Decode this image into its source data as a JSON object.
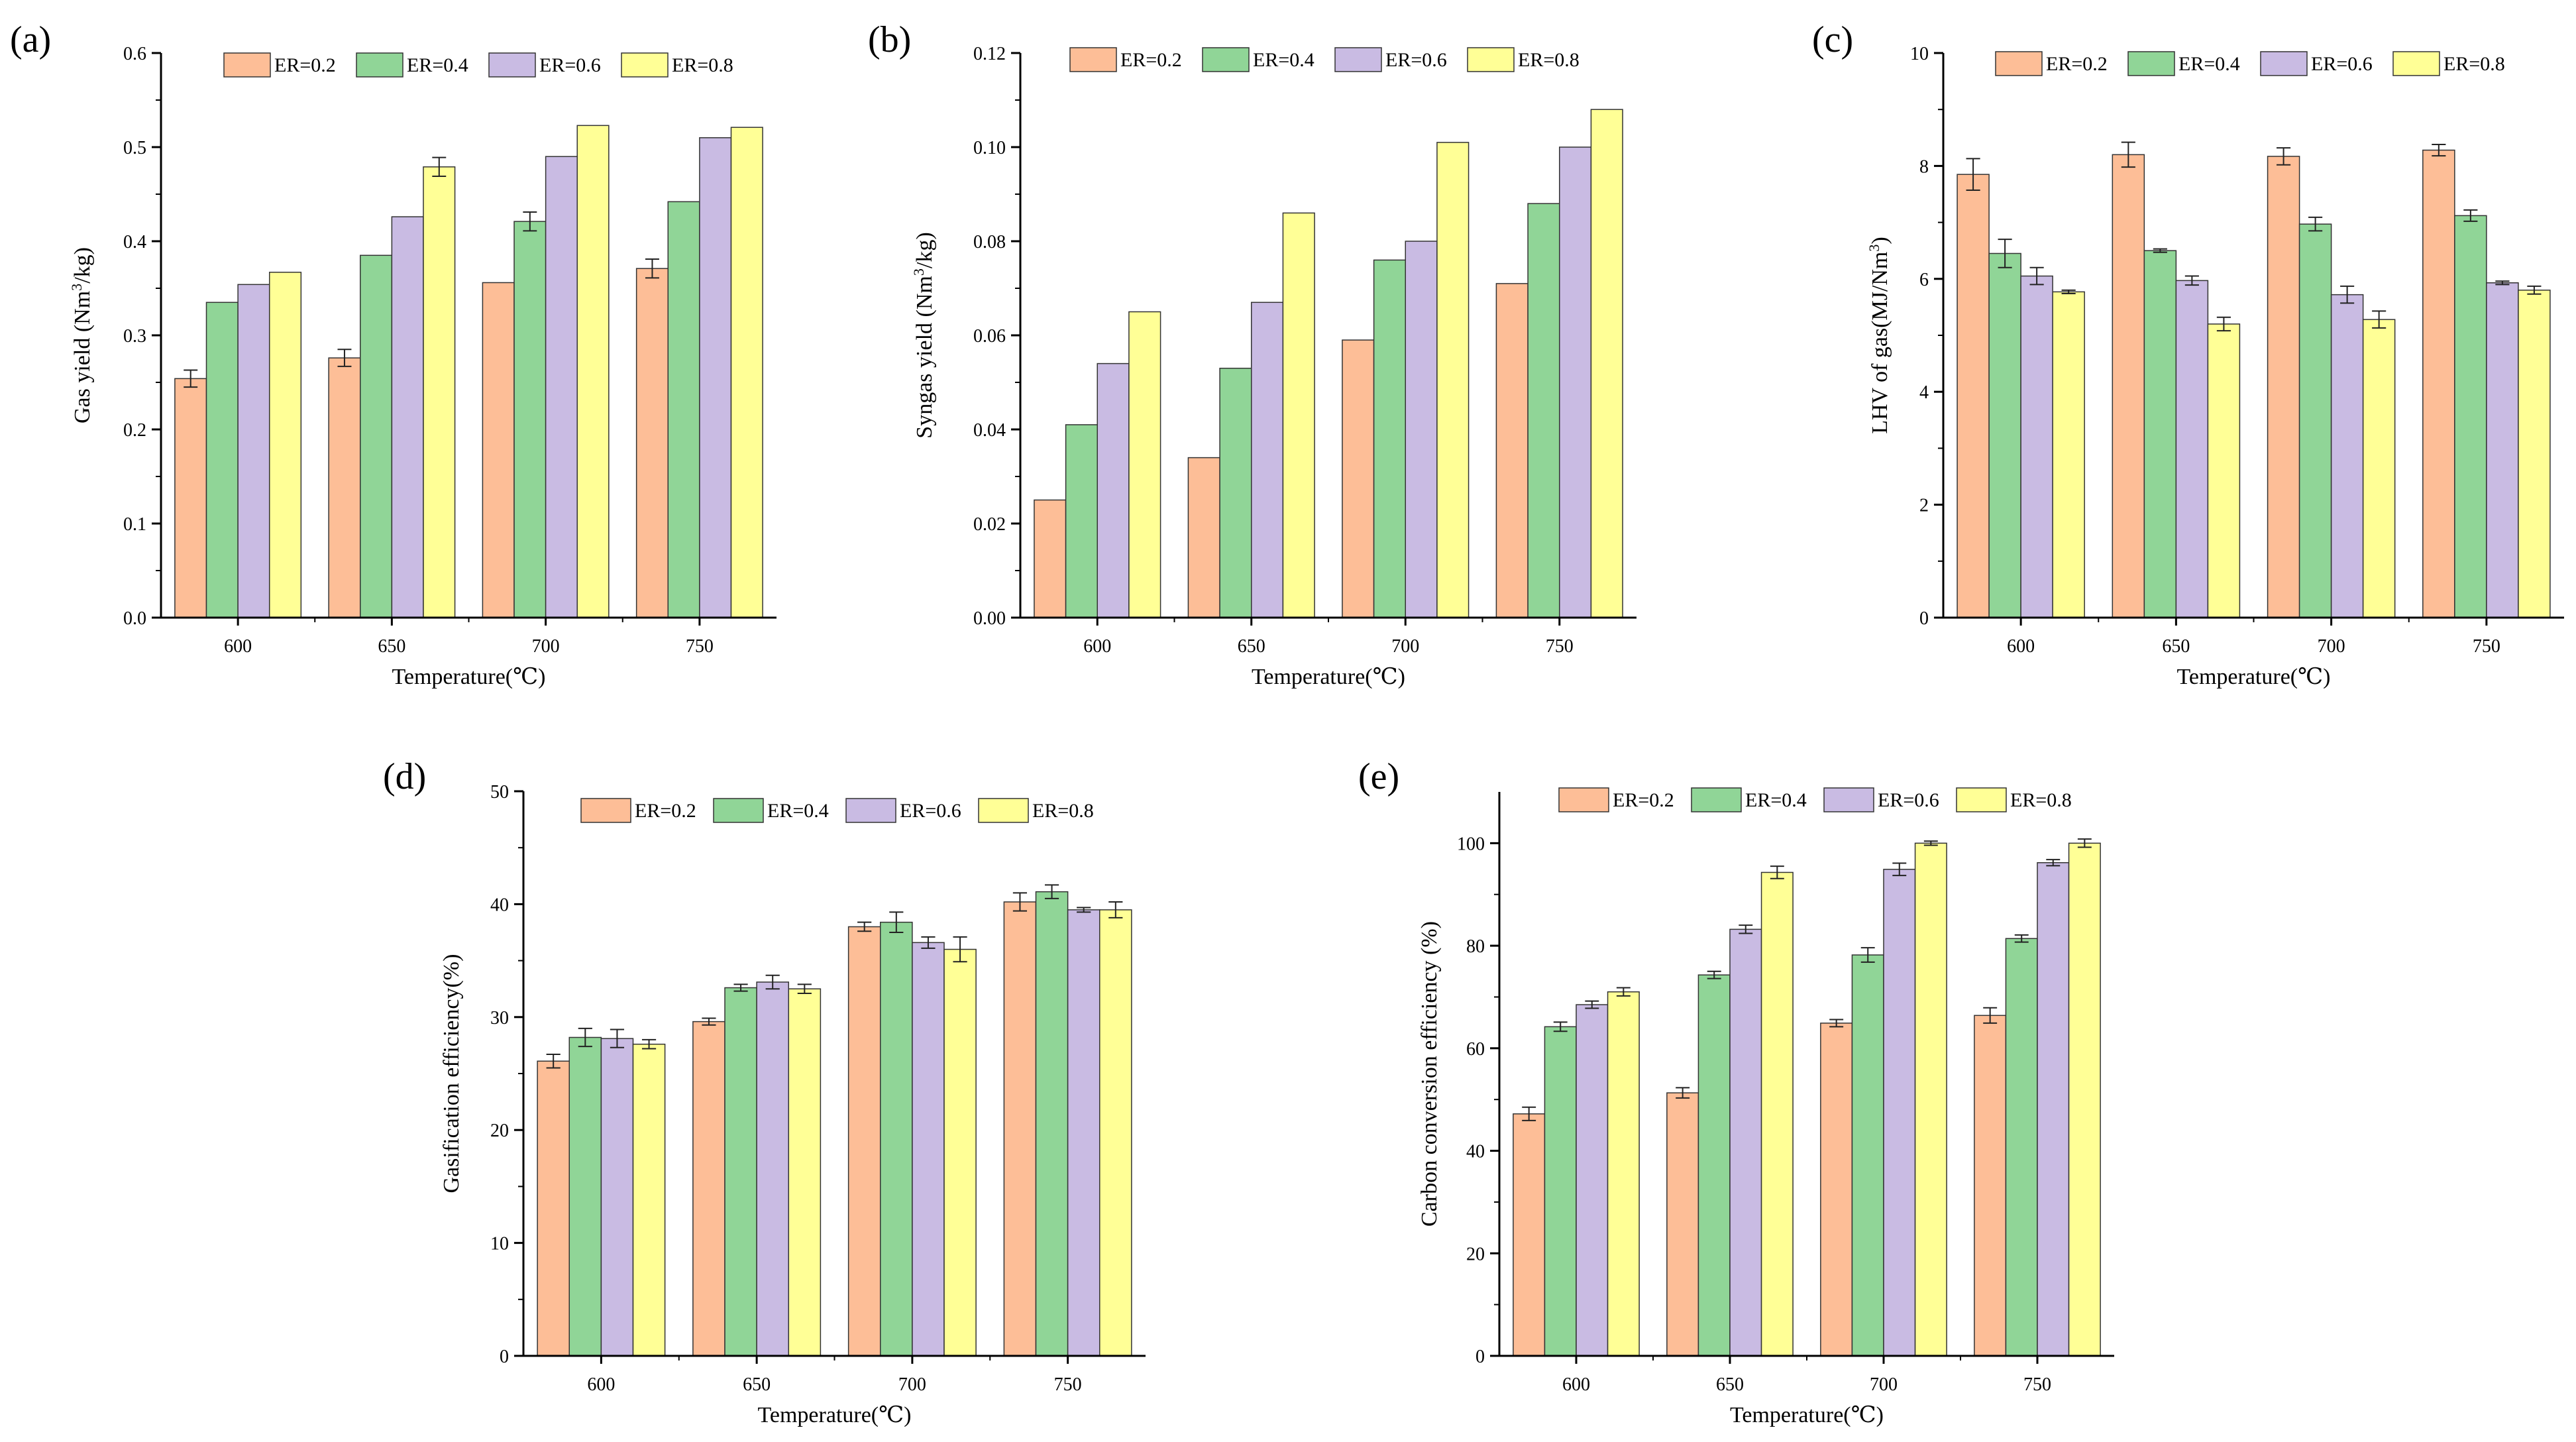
{
  "legend_colors": {
    "ER=0.2": "#FDBE97",
    "ER=0.4": "#90D597",
    "ER=0.6": "#C9BBE3",
    "ER=0.8": "#FFFF96"
  },
  "axis_color": "#000000",
  "chart_data": [
    {
      "id": "a",
      "panel_label": "(a)",
      "type": "bar",
      "title": "",
      "xlabel": "Temperature(℃)",
      "ylabel": {
        "pre": "Gas yield (Nm",
        "sup": "3",
        "post": "/kg)"
      },
      "categories": [
        "600",
        "650",
        "700",
        "750"
      ],
      "ylim": [
        0,
        0.6
      ],
      "yticks": [
        "0.0",
        "0.1",
        "0.2",
        "0.3",
        "0.4",
        "0.5",
        "0.6"
      ],
      "legend": "top-center",
      "series": [
        {
          "name": "ER=0.2",
          "values": [
            0.254,
            0.276,
            0.356,
            0.371
          ],
          "errors": [
            0.009,
            0.009,
            0.0,
            0.01
          ]
        },
        {
          "name": "ER=0.4",
          "values": [
            0.335,
            0.385,
            0.421,
            0.442
          ],
          "errors": [
            0.0,
            0.0,
            0.01,
            0.0
          ]
        },
        {
          "name": "ER=0.6",
          "values": [
            0.354,
            0.426,
            0.49,
            0.51
          ],
          "errors": [
            0.0,
            0.0,
            0.0,
            0.0
          ]
        },
        {
          "name": "ER=0.8",
          "values": [
            0.367,
            0.479,
            0.523,
            0.521
          ],
          "errors": [
            0.0,
            0.01,
            0.0,
            0.0
          ]
        }
      ]
    },
    {
      "id": "b",
      "panel_label": "(b)",
      "type": "bar",
      "title": "",
      "xlabel": "Temperature(℃)",
      "ylabel": {
        "pre": "Syngas yield (Nm",
        "sup": "3",
        "post": "/kg)"
      },
      "categories": [
        "600",
        "650",
        "700",
        "750"
      ],
      "ylim": [
        0,
        0.12
      ],
      "yticks": [
        "0.00",
        "0.02",
        "0.04",
        "0.06",
        "0.08",
        "0.10",
        "0.12"
      ],
      "legend": "top-center",
      "series": [
        {
          "name": "ER=0.2",
          "values": [
            0.025,
            0.034,
            0.059,
            0.071
          ],
          "errors": [
            0,
            0,
            0,
            0
          ]
        },
        {
          "name": "ER=0.4",
          "values": [
            0.041,
            0.053,
            0.076,
            0.088
          ],
          "errors": [
            0,
            0,
            0,
            0
          ]
        },
        {
          "name": "ER=0.6",
          "values": [
            0.054,
            0.067,
            0.08,
            0.1
          ],
          "errors": [
            0,
            0,
            0,
            0
          ]
        },
        {
          "name": "ER=0.8",
          "values": [
            0.065,
            0.086,
            0.101,
            0.108
          ],
          "errors": [
            0,
            0,
            0,
            0
          ]
        }
      ]
    },
    {
      "id": "c",
      "panel_label": "(c)",
      "type": "bar",
      "title": "",
      "xlabel": "Temperature(℃)",
      "ylabel": {
        "pre": "LHV of gas(MJ/Nm",
        "sup": "3",
        "post": ")"
      },
      "categories": [
        "600",
        "650",
        "700",
        "750"
      ],
      "ylim": [
        0,
        10
      ],
      "yticks": [
        "0",
        "2",
        "4",
        "6",
        "8",
        "10"
      ],
      "legend": "top-center",
      "series": [
        {
          "name": "ER=0.2",
          "values": [
            7.85,
            8.2,
            8.17,
            8.28
          ],
          "errors": [
            0.28,
            0.22,
            0.15,
            0.1
          ]
        },
        {
          "name": "ER=0.4",
          "values": [
            6.45,
            6.5,
            6.97,
            7.12
          ],
          "errors": [
            0.25,
            0.03,
            0.12,
            0.1
          ]
        },
        {
          "name": "ER=0.6",
          "values": [
            6.05,
            5.97,
            5.72,
            5.93
          ],
          "errors": [
            0.15,
            0.08,
            0.15,
            0.03
          ]
        },
        {
          "name": "ER=0.8",
          "values": [
            5.77,
            5.2,
            5.28,
            5.8
          ],
          "errors": [
            0.03,
            0.12,
            0.15,
            0.07
          ]
        }
      ]
    },
    {
      "id": "d",
      "panel_label": "(d)",
      "type": "bar",
      "title": "",
      "xlabel": "Temperature(℃)",
      "ylabel": {
        "pre": "Gasification efficiency(%)",
        "sup": "",
        "post": ""
      },
      "categories": [
        "600",
        "650",
        "700",
        "750"
      ],
      "ylim": [
        0,
        50
      ],
      "yticks": [
        "0",
        "10",
        "20",
        "30",
        "40",
        "50"
      ],
      "legend": "top-center",
      "series": [
        {
          "name": "ER=0.2",
          "values": [
            26.1,
            29.6,
            38.0,
            40.2
          ],
          "errors": [
            0.6,
            0.3,
            0.4,
            0.8
          ]
        },
        {
          "name": "ER=0.4",
          "values": [
            28.2,
            32.6,
            38.4,
            41.1
          ],
          "errors": [
            0.8,
            0.3,
            0.9,
            0.6
          ]
        },
        {
          "name": "ER=0.6",
          "values": [
            28.1,
            33.1,
            36.6,
            39.5
          ],
          "errors": [
            0.8,
            0.6,
            0.5,
            0.2
          ]
        },
        {
          "name": "ER=0.8",
          "values": [
            27.6,
            32.5,
            36.0,
            39.5
          ],
          "errors": [
            0.4,
            0.4,
            1.1,
            0.7
          ]
        }
      ]
    },
    {
      "id": "e",
      "panel_label": "(e)",
      "type": "bar",
      "title": "",
      "xlabel": "Temperature(℃)",
      "ylabel": {
        "pre": "Carbon conversion efficiency (%)",
        "sup": "",
        "post": ""
      },
      "categories": [
        "600",
        "650",
        "700",
        "750"
      ],
      "ylim": [
        0,
        110
      ],
      "yticks": [
        "0",
        "20",
        "40",
        "60",
        "80",
        "100"
      ],
      "ytick_step": 20,
      "legend": "top-center",
      "series": [
        {
          "name": "ER=0.2",
          "values": [
            47.2,
            51.3,
            64.9,
            66.4
          ],
          "errors": [
            1.3,
            1.0,
            0.7,
            1.5
          ]
        },
        {
          "name": "ER=0.4",
          "values": [
            64.2,
            74.3,
            78.2,
            81.4
          ],
          "errors": [
            0.9,
            0.7,
            1.4,
            0.7
          ]
        },
        {
          "name": "ER=0.6",
          "values": [
            68.5,
            83.2,
            94.9,
            96.2
          ],
          "errors": [
            0.7,
            0.8,
            1.2,
            0.6
          ]
        },
        {
          "name": "ER=0.8",
          "values": [
            71.0,
            94.3,
            100.0,
            100.0
          ],
          "errors": [
            0.8,
            1.2,
            0.4,
            0.8
          ]
        }
      ]
    }
  ]
}
